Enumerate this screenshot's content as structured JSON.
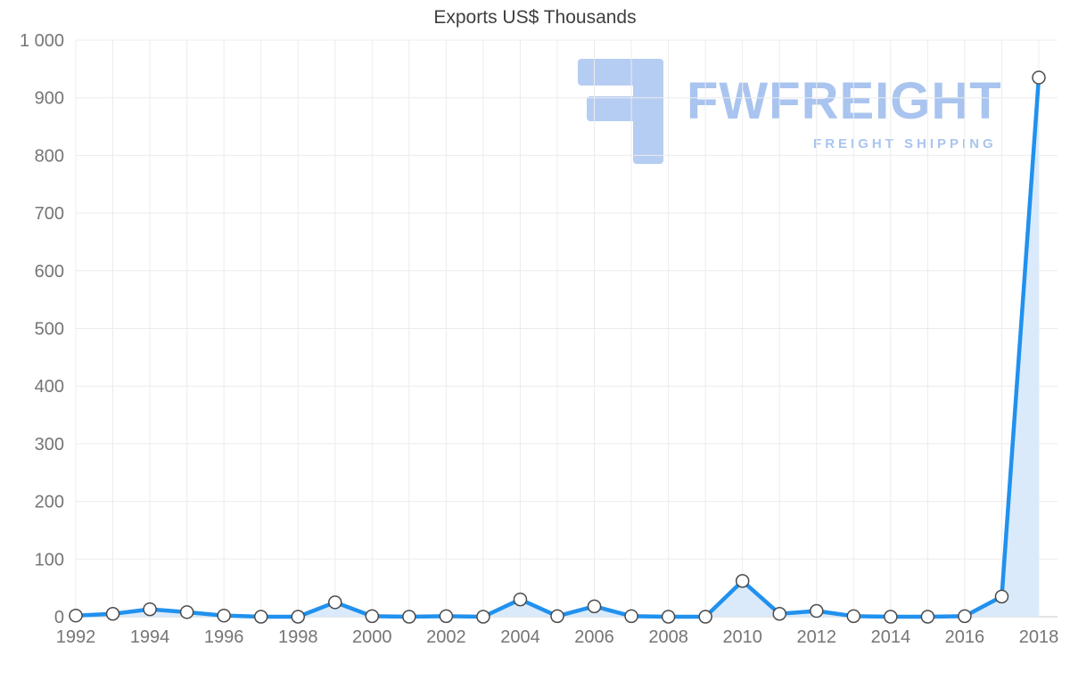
{
  "chart_data": {
    "type": "line",
    "title": "Exports US$ Thousands",
    "xlabel": "",
    "ylabel": "",
    "x": [
      1992,
      1993,
      1994,
      1995,
      1996,
      1997,
      1998,
      1999,
      2000,
      2001,
      2002,
      2003,
      2004,
      2005,
      2006,
      2007,
      2008,
      2009,
      2010,
      2011,
      2012,
      2013,
      2014,
      2015,
      2016,
      2017,
      2018
    ],
    "series": [
      {
        "name": "Exports US$ Thousands",
        "values": [
          2,
          5,
          13,
          8,
          2,
          0,
          0,
          25,
          1,
          0,
          1,
          0,
          30,
          1,
          18,
          1,
          0,
          0,
          62,
          5,
          10,
          1,
          0,
          0,
          1,
          35,
          935
        ]
      }
    ],
    "ylim": [
      0,
      1000
    ],
    "ytick_step": 100,
    "ytick_labels": [
      "0",
      "100",
      "200",
      "300",
      "400",
      "500",
      "600",
      "700",
      "800",
      "900",
      "1 000"
    ],
    "xtick_labels": [
      "1992",
      "1994",
      "1996",
      "1998",
      "2000",
      "2002",
      "2004",
      "2006",
      "2008",
      "2010",
      "2012",
      "2014",
      "2016",
      "2018"
    ],
    "grid": true,
    "legend": "none",
    "line_color": "#2191ee",
    "area_color": "#daeafb",
    "marker_fill": "#ffffff",
    "marker_stroke": "#4a4a4a",
    "gridline_color": "#ececec",
    "axis_line_color": "#c9c9c9",
    "tick_color": "#757575"
  },
  "watermark": {
    "title": "FWFREIGHT",
    "subtitle": "FREIGHT SHIPPING",
    "color": "#a9c4ef",
    "logo": "fwfreight-logo"
  }
}
